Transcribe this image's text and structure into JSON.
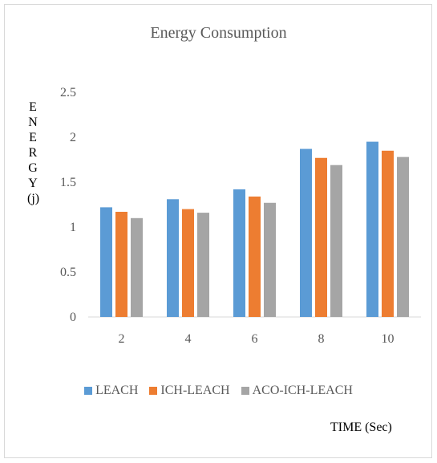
{
  "chart_data": {
    "type": "bar",
    "title": "Energy Consumption",
    "ylabel": "ENERGY(j)",
    "xlabel": "TIME (Sec)",
    "categories": [
      "2",
      "4",
      "6",
      "8",
      "10"
    ],
    "series": [
      {
        "name": "LEACH",
        "values": [
          1.22,
          1.31,
          1.42,
          1.87,
          1.95
        ],
        "color": "#5b9bd5"
      },
      {
        "name": "ICH-LEACH",
        "values": [
          1.17,
          1.2,
          1.34,
          1.77,
          1.85
        ],
        "color": "#ed7d31"
      },
      {
        "name": "ACO-ICH-LEACH",
        "values": [
          1.1,
          1.16,
          1.27,
          1.69,
          1.78
        ],
        "color": "#a5a5a5"
      }
    ],
    "ylim": [
      0,
      2.5
    ],
    "yticks": [
      "0",
      "0.5",
      "1",
      "1.5",
      "2",
      "2.5"
    ],
    "grid": false,
    "legend_position": "bottom"
  }
}
